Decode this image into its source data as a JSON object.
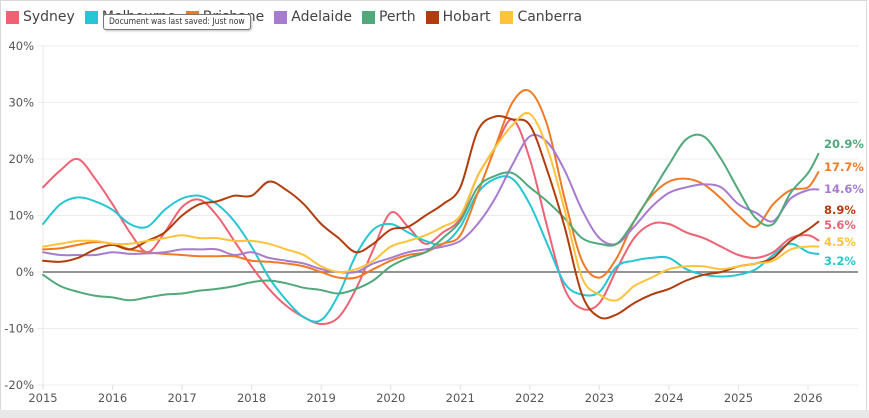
{
  "tooltip": "Document was last saved: Just now",
  "chart_data": {
    "type": "line",
    "title": "",
    "xlabel": "",
    "ylabel": "",
    "ylim": [
      -20,
      40
    ],
    "xlim": [
      2015,
      2026.9
    ],
    "yticks": [
      -20,
      -10,
      0,
      10,
      20,
      30,
      40
    ],
    "ytick_labels": [
      "-20%",
      "-10%",
      "0%",
      "10%",
      "20%",
      "30%",
      "40%"
    ],
    "xticks": [
      2015,
      2016,
      2017,
      2018,
      2019,
      2020,
      2021,
      2022,
      2023,
      2024,
      2025,
      2026
    ],
    "xtick_labels": [
      "2015",
      "2016",
      "2017",
      "2018",
      "2019",
      "2020",
      "2021",
      "2022",
      "2023",
      "2024",
      "2025",
      "2026"
    ],
    "grid": true,
    "legend": "top-left",
    "x": [
      2015.0,
      2015.25,
      2015.5,
      2015.75,
      2016.0,
      2016.25,
      2016.5,
      2016.75,
      2017.0,
      2017.25,
      2017.5,
      2017.75,
      2018.0,
      2018.25,
      2018.5,
      2018.75,
      2019.0,
      2019.25,
      2019.5,
      2019.75,
      2020.0,
      2020.25,
      2020.5,
      2020.75,
      2021.0,
      2021.25,
      2021.5,
      2021.75,
      2022.0,
      2022.25,
      2022.5,
      2022.75,
      2023.0,
      2023.25,
      2023.5,
      2023.75,
      2024.0,
      2024.25,
      2024.5,
      2024.75,
      2025.0,
      2025.25,
      2025.5,
      2025.75,
      2026.0,
      2026.15
    ],
    "series": [
      {
        "name": "Sydney",
        "color": "#ee6274",
        "end_label": "5.6%",
        "values": [
          15.0,
          18.0,
          20.0,
          16.5,
          12.0,
          7.0,
          3.5,
          7.0,
          11.5,
          12.8,
          10.0,
          5.5,
          1.0,
          -3.0,
          -6.0,
          -8.0,
          -9.2,
          -8.0,
          -3.0,
          4.0,
          10.5,
          8.0,
          5.0,
          7.0,
          9.5,
          17.0,
          22.0,
          27.0,
          20.0,
          8.0,
          -3.0,
          -6.5,
          -5.5,
          0.5,
          6.0,
          8.5,
          8.5,
          7.0,
          6.0,
          4.5,
          3.0,
          2.5,
          3.5,
          6.0,
          6.5,
          5.6
        ]
      },
      {
        "name": "Melbourne",
        "color": "#26c6d4",
        "end_label": "3.2%",
        "values": [
          8.5,
          12.0,
          13.2,
          12.5,
          11.0,
          8.5,
          8.0,
          11.0,
          13.0,
          13.5,
          12.0,
          9.0,
          4.5,
          -1.0,
          -5.0,
          -8.0,
          -8.5,
          -4.0,
          3.0,
          7.5,
          8.5,
          7.0,
          5.5,
          5.0,
          8.0,
          14.0,
          16.5,
          16.5,
          12.0,
          5.0,
          -2.0,
          -4.0,
          -3.5,
          1.0,
          2.0,
          2.5,
          2.5,
          0.5,
          -0.5,
          -0.8,
          -0.5,
          0.5,
          3.0,
          5.0,
          3.5,
          3.2
        ]
      },
      {
        "name": "Brisbane",
        "color": "#f07a26",
        "end_label": "17.7%",
        "values": [
          4.0,
          4.2,
          4.8,
          5.3,
          5.0,
          4.0,
          3.5,
          3.2,
          3.0,
          2.8,
          2.8,
          2.8,
          2.0,
          1.8,
          1.5,
          1.0,
          0.0,
          -1.0,
          -1.0,
          0.5,
          2.0,
          3.0,
          3.5,
          5.0,
          6.5,
          14.0,
          22.0,
          30.0,
          32.0,
          26.0,
          13.0,
          2.0,
          -1.0,
          2.5,
          9.0,
          13.5,
          16.0,
          16.5,
          15.5,
          13.0,
          10.0,
          8.0,
          12.0,
          14.5,
          15.0,
          17.7
        ]
      },
      {
        "name": "Adelaide",
        "color": "#a77bd0",
        "end_label": "14.6%",
        "values": [
          3.5,
          3.0,
          3.0,
          3.0,
          3.5,
          3.2,
          3.3,
          3.5,
          4.0,
          4.0,
          4.0,
          3.0,
          3.5,
          2.5,
          2.0,
          1.5,
          0.5,
          0.0,
          0.0,
          1.5,
          2.5,
          3.5,
          4.0,
          4.5,
          5.5,
          8.5,
          13.0,
          19.0,
          24.0,
          23.0,
          18.0,
          11.0,
          6.0,
          5.0,
          8.0,
          11.5,
          14.0,
          15.0,
          15.5,
          15.0,
          12.0,
          10.5,
          9.0,
          13.0,
          14.5,
          14.6
        ]
      },
      {
        "name": "Perth",
        "color": "#50a97b",
        "end_label": "20.9%",
        "values": [
          -0.5,
          -2.5,
          -3.5,
          -4.2,
          -4.5,
          -5.0,
          -4.5,
          -4.0,
          -3.8,
          -3.3,
          -3.0,
          -2.5,
          -1.8,
          -1.5,
          -2.0,
          -2.8,
          -3.2,
          -3.8,
          -3.0,
          -1.5,
          1.0,
          2.5,
          3.5,
          6.0,
          9.0,
          15.0,
          17.0,
          17.5,
          15.0,
          12.5,
          9.5,
          6.0,
          5.0,
          5.0,
          9.0,
          14.0,
          19.0,
          23.5,
          24.0,
          20.0,
          14.5,
          9.5,
          8.5,
          14.0,
          17.5,
          20.9
        ]
      },
      {
        "name": "Hobart",
        "color": "#b23d0c",
        "end_label": "8.9%",
        "values": [
          2.0,
          1.8,
          2.5,
          4.0,
          4.8,
          4.0,
          5.5,
          7.0,
          10.0,
          12.0,
          12.5,
          13.5,
          13.5,
          16.0,
          14.5,
          12.0,
          8.5,
          6.0,
          3.5,
          5.0,
          7.5,
          8.0,
          10.0,
          12.0,
          15.0,
          25.0,
          27.5,
          27.0,
          26.0,
          18.0,
          8.0,
          -4.0,
          -8.0,
          -7.5,
          -5.5,
          -4.0,
          -3.0,
          -1.5,
          -0.5,
          0.0,
          1.0,
          1.5,
          2.5,
          5.5,
          7.5,
          8.9
        ]
      },
      {
        "name": "Canberra",
        "color": "#fdc33a",
        "end_label": "4.5%",
        "values": [
          4.5,
          5.0,
          5.5,
          5.5,
          5.0,
          5.0,
          5.5,
          6.0,
          6.5,
          6.0,
          6.0,
          5.5,
          5.5,
          5.0,
          4.0,
          3.0,
          1.0,
          0.0,
          0.5,
          2.0,
          4.5,
          5.5,
          6.5,
          8.0,
          10.0,
          17.0,
          22.0,
          26.0,
          28.0,
          22.0,
          11.0,
          -1.0,
          -4.0,
          -5.0,
          -2.5,
          -1.0,
          0.5,
          1.0,
          1.0,
          0.5,
          1.0,
          1.5,
          2.0,
          4.0,
          4.5,
          4.5
        ]
      }
    ]
  }
}
